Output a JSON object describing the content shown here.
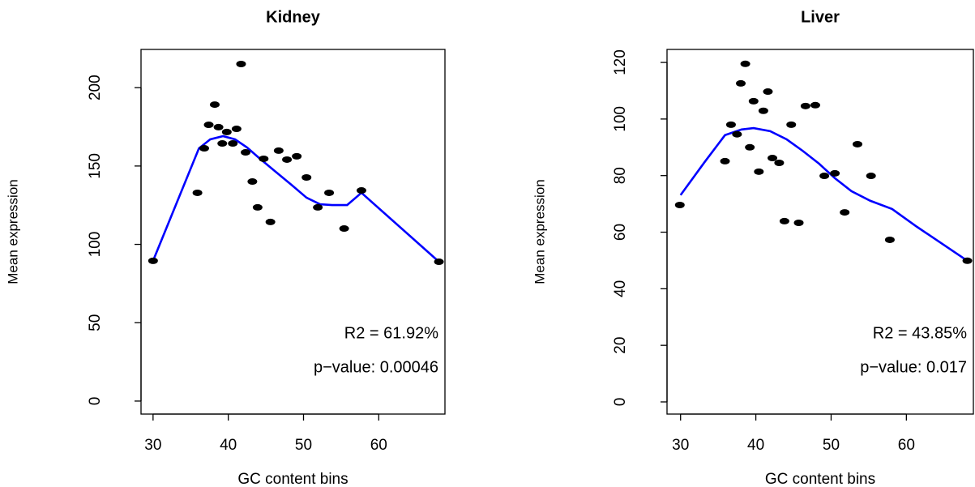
{
  "chart_data": [
    {
      "type": "scatter",
      "title": "Kidney",
      "x_label": "GC content bins",
      "y_label": "Mean expression",
      "xlim": [
        28.4,
        68.8
      ],
      "ylim": [
        -8.3,
        224.4
      ],
      "xticks": [
        30,
        40,
        50,
        60
      ],
      "yticks": [
        0,
        50,
        100,
        150,
        200
      ],
      "points": {
        "color": "#000000",
        "x": [
          30,
          35.9,
          36.8,
          37.4,
          38.2,
          38.7,
          39.2,
          39.8,
          40.6,
          41.1,
          41.7,
          42.3,
          43.2,
          43.9,
          44.7,
          45.6,
          46.7,
          47.8,
          49.1,
          50.4,
          51.9,
          53.4,
          55.4,
          57.7,
          68.0
        ],
        "y": [
          89.5,
          132.9,
          161.3,
          176.3,
          189.2,
          174.8,
          164.4,
          171.7,
          164.4,
          173.7,
          215.1,
          158.7,
          140.1,
          123.6,
          154.6,
          114.3,
          159.8,
          154.1,
          156.2,
          142.7,
          123.6,
          132.9,
          110.1,
          134.4,
          88.9
        ]
      },
      "fit": {
        "color": "#0000ff",
        "x": [
          30,
          36.1,
          37.6,
          39.3,
          40.9,
          42.5,
          44.1,
          46.3,
          48.4,
          50.4,
          52.2,
          53.8,
          55.8,
          57.7,
          68.0
        ],
        "y": [
          89.5,
          161.3,
          167,
          169.1,
          167,
          161.8,
          155.1,
          146.3,
          138,
          129.8,
          125.6,
          125.1,
          125.1,
          132.9,
          88.9
        ]
      },
      "annotations": [
        {
          "text": "R2 = 61.92%",
          "color": "#0000ff"
        },
        {
          "text": "p−value: 0.00046",
          "color": "#0000ff"
        }
      ]
    },
    {
      "type": "scatter",
      "title": "Liver",
      "x_label": "GC content bins",
      "y_label": "Mean expression",
      "xlim": [
        28.2,
        68.9
      ],
      "ylim": [
        -4.3,
        124.6
      ],
      "xticks": [
        30,
        40,
        50,
        60
      ],
      "yticks": [
        0,
        20,
        40,
        60,
        80,
        100,
        120
      ],
      "points": {
        "color": "#000000",
        "x": [
          29.9,
          35.9,
          36.7,
          37.5,
          38.0,
          38.6,
          39.2,
          39.7,
          40.4,
          41.0,
          41.6,
          42.2,
          43.1,
          43.8,
          44.7,
          45.7,
          46.6,
          47.9,
          49.1,
          50.5,
          51.8,
          53.5,
          55.3,
          57.8,
          68.1
        ],
        "y": [
          69.6,
          85.1,
          98,
          94.6,
          112.6,
          119.5,
          90,
          106.3,
          81.4,
          102.9,
          109.7,
          86.2,
          84.5,
          63.9,
          98,
          63.3,
          104.6,
          104.9,
          79.9,
          80.8,
          67,
          91.1,
          79.9,
          57.3,
          49.9
        ]
      },
      "fit": {
        "color": "#0000ff",
        "x": [
          30,
          33.2,
          35.9,
          38.1,
          39.7,
          41.9,
          44.1,
          46.2,
          48.4,
          50.5,
          52.7,
          55.2,
          58.1,
          61.4,
          68.1
        ],
        "y": [
          73.1,
          84.8,
          94.3,
          96.3,
          96.8,
          95.7,
          92.8,
          88.8,
          84.2,
          79.1,
          74.5,
          71.1,
          68.2,
          61.9,
          49.9
        ]
      },
      "annotations": [
        {
          "text": "R2 = 43.85%",
          "color": "#0000ff"
        },
        {
          "text": "p−value: 0.017",
          "color": "#0000ff"
        }
      ]
    }
  ]
}
